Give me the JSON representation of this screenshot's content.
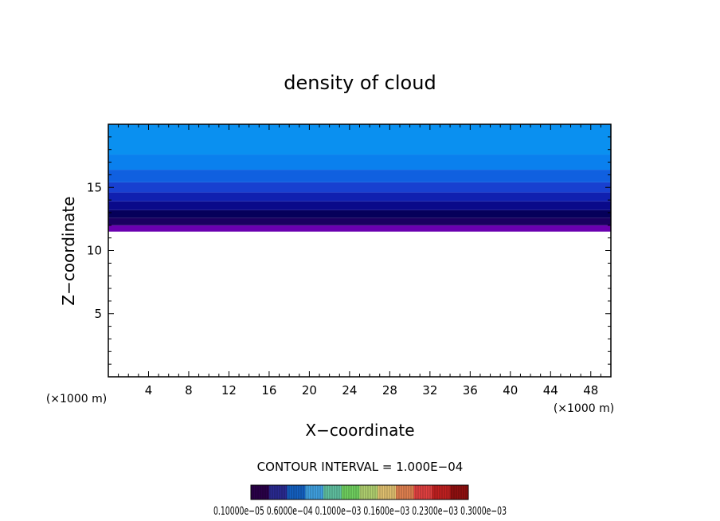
{
  "chart_data": {
    "type": "heatmap",
    "title": "density of cloud",
    "xlabel": "X−coordinate",
    "ylabel": "Z−coordinate",
    "x_unit_left": "(×1000 m)",
    "x_unit_right": "(×1000 m)",
    "xlim": [
      0,
      50
    ],
    "ylim": [
      0,
      20
    ],
    "x_ticks": [
      4,
      8,
      12,
      16,
      20,
      24,
      28,
      32,
      36,
      40,
      44,
      48
    ],
    "x_tick_labels": [
      "4",
      "8",
      "12",
      "16",
      "20",
      "24",
      "28",
      "32",
      "36",
      "40",
      "44",
      "48"
    ],
    "y_ticks": [
      5,
      10,
      15
    ],
    "y_tick_labels": [
      "5",
      "10",
      "15"
    ],
    "cloud_layer": {
      "base_z": 11.5,
      "top_z": 20,
      "bands": [
        {
          "z0": 11.5,
          "z1": 12.0,
          "color": "#6a00b0"
        },
        {
          "z0": 12.0,
          "z1": 12.6,
          "color": "#1a0060"
        },
        {
          "z0": 12.6,
          "z1": 13.2,
          "color": "#05005a"
        },
        {
          "z0": 13.2,
          "z1": 13.9,
          "color": "#0a0a8a"
        },
        {
          "z0": 13.9,
          "z1": 14.6,
          "color": "#1020b0"
        },
        {
          "z0": 14.6,
          "z1": 15.4,
          "color": "#1840d0"
        },
        {
          "z0": 15.4,
          "z1": 16.4,
          "color": "#1060e0"
        },
        {
          "z0": 16.4,
          "z1": 17.6,
          "color": "#0a80ee"
        },
        {
          "z0": 17.6,
          "z1": 20.0,
          "color": "#0a90f0"
        }
      ]
    },
    "contour_interval_text": "CONTOUR INTERVAL = 1.000E−04",
    "colorbar_labels_text": "0.10000e−05 0.6000e−04 0.1000e−03 0.1600e−03 0.2300e−03 0.3000e−03",
    "colorbar_colors": [
      "#2a0048",
      "#2a2a90",
      "#1460c0",
      "#40a0e0",
      "#60c0a0",
      "#70d060",
      "#b0d070",
      "#e0c070",
      "#e08050",
      "#e04040",
      "#c02020",
      "#901010"
    ]
  }
}
